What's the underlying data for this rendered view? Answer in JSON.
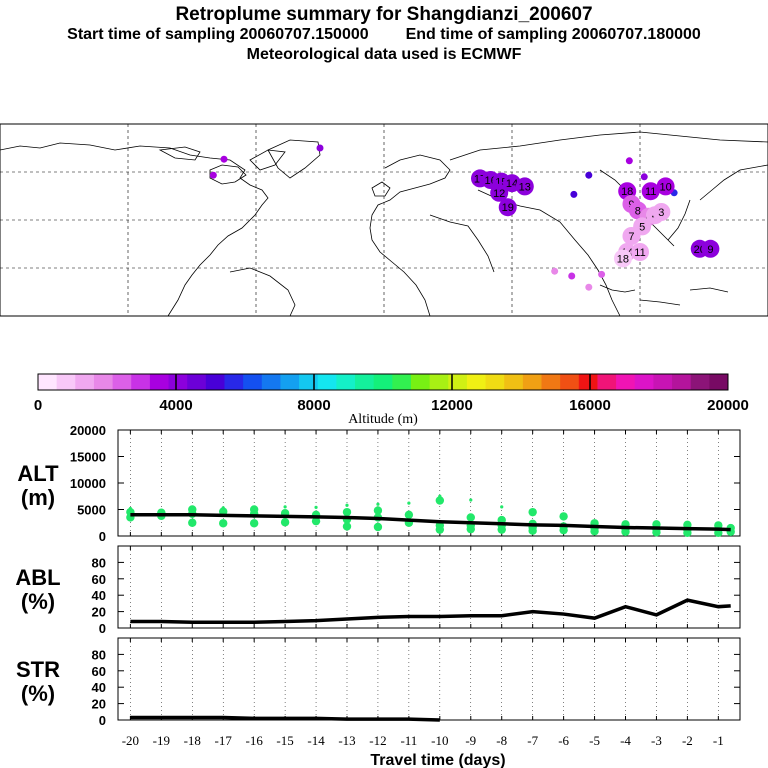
{
  "header": {
    "title": "Retroplume summary for Shangdianzi_200607",
    "start_label": "Start time of sampling 20060707.150000",
    "end_label": "End time of sampling 20060707.180000",
    "met_label": "Meteorological data used is ECMWF"
  },
  "colorbar": {
    "label": "Altitude (m)",
    "min": 0,
    "max": 20000,
    "ticks": [
      "0",
      "4000",
      "8000",
      "12000",
      "16000",
      "20000"
    ],
    "colors": [
      "#ffe6ff",
      "#f8c8f8",
      "#f0a8f0",
      "#e888e8",
      "#dc60e8",
      "#c832e6",
      "#a800e0",
      "#8c00dc",
      "#6c00d8",
      "#4800d8",
      "#2828e8",
      "#1450f0",
      "#1478f0",
      "#14a0f0",
      "#14c8f0",
      "#14e6f0",
      "#14f0c8",
      "#14f09c",
      "#14f07a",
      "#32f050",
      "#78f014",
      "#a8f014",
      "#d0f014",
      "#f0f014",
      "#f0dc14",
      "#f0c014",
      "#f0a014",
      "#f07814",
      "#f05014",
      "#f01414",
      "#f01478",
      "#f014b4",
      "#dc14c8",
      "#c814b4",
      "#b4149c",
      "#8c1478",
      "#780a64"
    ]
  },
  "map": {
    "markers": [
      {
        "label": "17",
        "lon": 45,
        "lat": 56,
        "alt": 4300
      },
      {
        "label": "16",
        "lon": 50,
        "lat": 55,
        "alt": 4200
      },
      {
        "label": "15",
        "lon": 55,
        "lat": 54,
        "alt": 4000
      },
      {
        "label": "14",
        "lon": 60,
        "lat": 53,
        "alt": 4100
      },
      {
        "label": "13",
        "lon": 66,
        "lat": 51,
        "alt": 4000
      },
      {
        "label": "12",
        "lon": 54,
        "lat": 47,
        "alt": 3900
      },
      {
        "label": "19",
        "lon": 58,
        "lat": 38,
        "alt": 3800
      },
      {
        "label": "18",
        "lon": 114,
        "lat": 48,
        "alt": 3600
      },
      {
        "label": "11",
        "lon": 125,
        "lat": 48,
        "alt": 3500
      },
      {
        "label": "10",
        "lon": 132,
        "lat": 51,
        "alt": 3400
      },
      {
        "label": "9",
        "lon": 116,
        "lat": 40,
        "alt": 2500
      },
      {
        "label": "8",
        "lon": 119,
        "lat": 36,
        "alt": 2200
      },
      {
        "label": "6",
        "lon": 124,
        "lat": 32,
        "alt": 1800
      },
      {
        "label": "5",
        "lon": 121,
        "lat": 26,
        "alt": 1600
      },
      {
        "label": "4",
        "lon": 127,
        "lat": 33,
        "alt": 1500
      },
      {
        "label": "3",
        "lon": 130,
        "lat": 35,
        "alt": 1300
      },
      {
        "label": "7",
        "lon": 116,
        "lat": 20,
        "alt": 1400
      },
      {
        "label": "14",
        "lon": 114,
        "lat": 10,
        "alt": 1200
      },
      {
        "label": "11",
        "lon": 120,
        "lat": 10,
        "alt": 1100
      },
      {
        "label": "18",
        "lon": 112,
        "lat": 6,
        "alt": 1000
      },
      {
        "label": "20",
        "lon": 148,
        "lat": 12,
        "alt": 3900
      },
      {
        "label": "9",
        "lon": 153,
        "lat": 12,
        "alt": 4200
      }
    ],
    "shapes": [
      {
        "label": "",
        "lon": -30,
        "lat": 75,
        "alt": 3800
      },
      {
        "label": "",
        "lon": -75,
        "lat": 68,
        "alt": 3700
      },
      {
        "label": "",
        "lon": -80,
        "lat": 58,
        "alt": 3600
      },
      {
        "label": "",
        "lon": 115,
        "lat": 67,
        "alt": 3700
      },
      {
        "label": "",
        "lon": 122,
        "lat": 57,
        "alt": 3900
      },
      {
        "label": "",
        "lon": 89,
        "lat": 46,
        "alt": 5200
      },
      {
        "label": "",
        "lon": 96,
        "lat": 58,
        "alt": 5000
      },
      {
        "label": "",
        "lon": 136,
        "lat": 47,
        "alt": 5600
      },
      {
        "label": "",
        "lon": 88,
        "lat": -5,
        "alt": 3000
      },
      {
        "label": "",
        "lon": 102,
        "lat": -4,
        "alt": 2400
      },
      {
        "label": "",
        "lon": 80,
        "lat": -2,
        "alt": 1800
      },
      {
        "label": "",
        "lon": 96,
        "lat": -12,
        "alt": 2100
      }
    ],
    "xrange": [
      -180,
      180
    ],
    "yrange": [
      -30,
      90
    ]
  },
  "panels": {
    "alt": {
      "title_line1": "ALT",
      "title_line2": "(m)",
      "ticks": [
        "0",
        "5000",
        "10000",
        "15000",
        "20000"
      ],
      "max": 20000
    },
    "abl": {
      "title_line1": "ABL",
      "title_line2": "(%)",
      "ticks": [
        "0",
        "20",
        "40",
        "60",
        "80"
      ],
      "max": 100
    },
    "str": {
      "title_line1": "STR",
      "title_line2": "(%)",
      "ticks": [
        "0",
        "20",
        "40",
        "60",
        "80"
      ],
      "max": 100
    }
  },
  "x_axis": {
    "label": "Travel time (days)",
    "ticks": [
      "-20",
      "-19",
      "-18",
      "-17",
      "-16",
      "-15",
      "-14",
      "-13",
      "-12",
      "-11",
      "-10",
      "-9",
      "-8",
      "-7",
      "-6",
      "-5",
      "-4",
      "-3",
      "-2",
      "-1"
    ]
  },
  "chart_data": [
    {
      "type": "line",
      "title": "ALT (m)",
      "xlabel": "Travel time (days)",
      "ylabel": "ALT (m)",
      "xlim": [
        -20,
        -0.5
      ],
      "ylim": [
        0,
        20000
      ],
      "x": [
        -20,
        -19,
        -18,
        -17,
        -16,
        -15,
        -14,
        -13,
        -12,
        -11,
        -10,
        -9,
        -8,
        -7,
        -6,
        -5,
        -4,
        -3,
        -2,
        -1,
        -0.6
      ],
      "series": [
        {
          "name": "mean altitude",
          "values": [
            4000,
            4000,
            4000,
            3900,
            3800,
            3700,
            3600,
            3500,
            3300,
            3000,
            2700,
            2500,
            2300,
            2100,
            2000,
            1800,
            1600,
            1500,
            1400,
            1300,
            1200
          ]
        }
      ],
      "spread_points": [
        {
          "x": -20,
          "y": [
            3500,
            4500,
            5200
          ]
        },
        {
          "x": -19,
          "y": [
            3800,
            4400
          ]
        },
        {
          "x": -18,
          "y": [
            2500,
            4200,
            5000
          ]
        },
        {
          "x": -17,
          "y": [
            2400,
            4600,
            5300
          ]
        },
        {
          "x": -16,
          "y": [
            2400,
            4200,
            5000
          ]
        },
        {
          "x": -15,
          "y": [
            2600,
            4300,
            5500
          ]
        },
        {
          "x": -14,
          "y": [
            2800,
            4000,
            5400
          ]
        },
        {
          "x": -13,
          "y": [
            1800,
            3100,
            4500,
            5800
          ]
        },
        {
          "x": -12,
          "y": [
            1700,
            3500,
            4800,
            6000
          ]
        },
        {
          "x": -11,
          "y": [
            2500,
            4000,
            6200
          ]
        },
        {
          "x": -10,
          "y": [
            1200,
            2000,
            6700,
            7500
          ]
        },
        {
          "x": -9,
          "y": [
            1300,
            2000,
            3500,
            6800
          ]
        },
        {
          "x": -8,
          "y": [
            1200,
            2000,
            3000,
            5500
          ]
        },
        {
          "x": -7,
          "y": [
            1000,
            1600,
            2300,
            4500
          ]
        },
        {
          "x": -6,
          "y": [
            1100,
            1800,
            3700
          ]
        },
        {
          "x": -5,
          "y": [
            900,
            1500,
            2400
          ]
        },
        {
          "x": -4,
          "y": [
            800,
            1400,
            2200
          ]
        },
        {
          "x": -3,
          "y": [
            700,
            1300,
            2200
          ]
        },
        {
          "x": -2,
          "y": [
            600,
            1200,
            2100
          ]
        },
        {
          "x": -1,
          "y": [
            600,
            1200,
            2000
          ]
        },
        {
          "x": -0.6,
          "y": [
            800,
            1500
          ]
        }
      ]
    },
    {
      "type": "line",
      "title": "ABL (%)",
      "xlabel": "Travel time (days)",
      "ylabel": "ABL (%)",
      "xlim": [
        -20,
        -0.5
      ],
      "ylim": [
        0,
        100
      ],
      "x": [
        -20,
        -19,
        -18,
        -17,
        -16,
        -15,
        -14,
        -13,
        -12,
        -11,
        -10,
        -9,
        -8,
        -7,
        -6,
        -5,
        -4,
        -3,
        -2,
        -1,
        -0.6
      ],
      "series": [
        {
          "name": "ABL",
          "values": [
            8,
            8,
            7,
            7,
            7,
            8,
            9,
            11,
            13,
            14,
            14,
            15,
            15,
            20,
            17,
            12,
            26,
            16,
            34,
            26,
            27
          ]
        }
      ]
    },
    {
      "type": "line",
      "title": "STR (%)",
      "xlabel": "Travel time (days)",
      "ylabel": "STR (%)",
      "xlim": [
        -20,
        -0.5
      ],
      "ylim": [
        0,
        100
      ],
      "x": [
        -20,
        -19,
        -18,
        -17,
        -16,
        -15,
        -14,
        -13,
        -12,
        -11,
        -10
      ],
      "series": [
        {
          "name": "STR",
          "values": [
            3,
            3,
            3,
            3,
            2,
            2,
            2,
            1,
            1,
            1,
            0
          ]
        }
      ]
    }
  ]
}
